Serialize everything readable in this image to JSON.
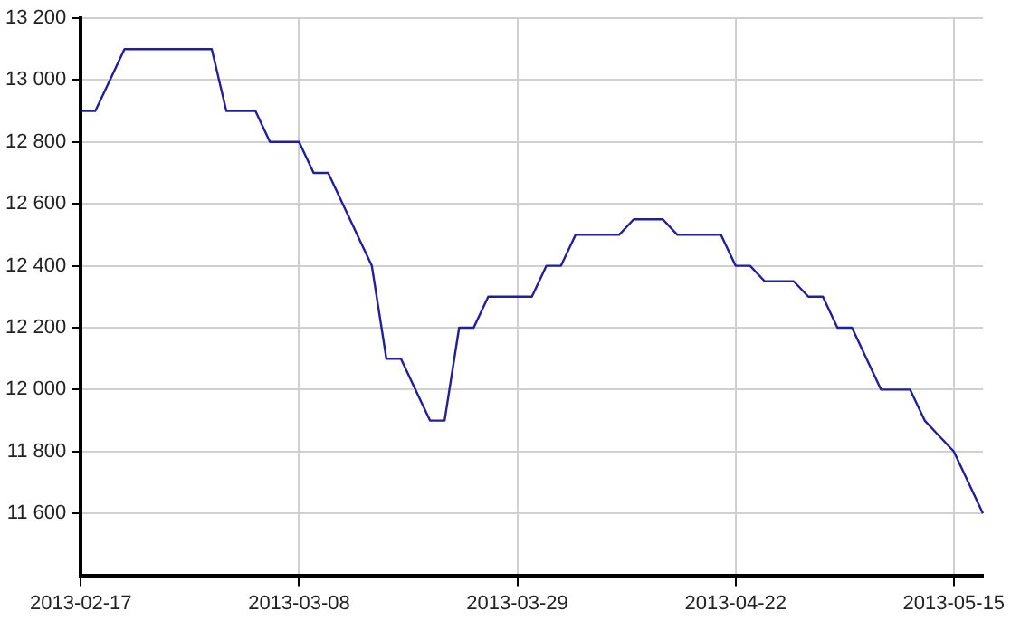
{
  "chart_data": {
    "type": "line",
    "categories": [
      "2013-02-17",
      null,
      null,
      null,
      null,
      null,
      null,
      null,
      null,
      null,
      null,
      null,
      null,
      null,
      null,
      "2013-03-08",
      null,
      null,
      null,
      null,
      null,
      null,
      null,
      null,
      null,
      null,
      null,
      null,
      null,
      null,
      "2013-03-29",
      null,
      null,
      null,
      null,
      null,
      null,
      null,
      null,
      null,
      null,
      null,
      null,
      null,
      null,
      "2013-04-22",
      null,
      null,
      null,
      null,
      null,
      null,
      null,
      null,
      null,
      null,
      null,
      null,
      null,
      null,
      "2013-05-15",
      null,
      null
    ],
    "series": [
      {
        "color": "#1f1f9f",
        "values": [
          12900,
          12900,
          13000,
          13100,
          13100,
          13100,
          13100,
          13100,
          13100,
          13100,
          12900,
          12900,
          12900,
          12800,
          12800,
          12800,
          12700,
          12700,
          12600,
          12500,
          12400,
          12100,
          12100,
          12000,
          11900,
          11900,
          12200,
          12200,
          12300,
          12300,
          12300,
          12300,
          12400,
          12400,
          12500,
          12500,
          12500,
          12500,
          12550,
          12550,
          12550,
          12500,
          12500,
          12500,
          12500,
          12400,
          12400,
          12350,
          12350,
          12350,
          12300,
          12300,
          12200,
          12200,
          12100,
          12000,
          12000,
          12000,
          11900,
          11850,
          11800,
          11700,
          11600
        ]
      }
    ],
    "ylim": [
      11400,
      13200
    ],
    "yticks": [
      {
        "value": 11600,
        "label": "11 600"
      },
      {
        "value": 11800,
        "label": "11 800"
      },
      {
        "value": 12000,
        "label": "12 000"
      },
      {
        "value": 12200,
        "label": "12 200"
      },
      {
        "value": 12400,
        "label": "12 400"
      },
      {
        "value": 12600,
        "label": "12 600"
      },
      {
        "value": 12800,
        "label": "12 800"
      },
      {
        "value": 13000,
        "label": "13 000"
      },
      {
        "value": 13200,
        "label": "13 200"
      }
    ],
    "grid": true,
    "legend": false,
    "marker": "none",
    "line_style": "solid"
  }
}
